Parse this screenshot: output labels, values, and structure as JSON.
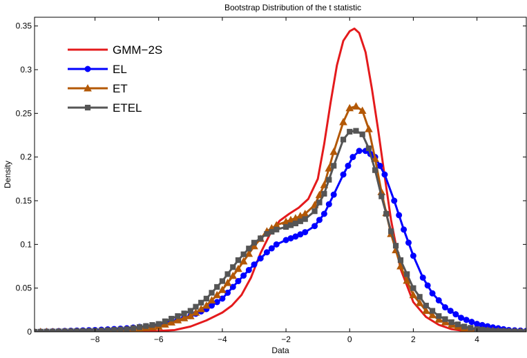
{
  "chart_data": {
    "type": "line",
    "title": "Bootstrap Distribution of the t statistic",
    "xlabel": "Data",
    "ylabel": "Density",
    "xlim": [
      -9.9,
      5.55
    ],
    "ylim": [
      0,
      0.36
    ],
    "xticks": [
      -8,
      -6,
      -4,
      -2,
      0,
      2,
      4
    ],
    "yticks": [
      0,
      0.05,
      0.1,
      0.15,
      0.2,
      0.25,
      0.3,
      0.35
    ],
    "ytick_labels": [
      "0",
      "0.05",
      "0.1",
      "0.15",
      "0.2",
      "0.25",
      "0.3",
      "0.35"
    ],
    "legend_position": "top-left",
    "series": [
      {
        "name": "GMM−2S",
        "color": "#e41a1c",
        "marker": "none",
        "x": [
          -9.9,
          -8,
          -7,
          -6,
          -5.5,
          -5,
          -4.5,
          -4,
          -3.7,
          -3.4,
          -3.1,
          -2.8,
          -2.5,
          -2.2,
          -1.9,
          -1.6,
          -1.3,
          -1,
          -0.8,
          -0.6,
          -0.4,
          -0.2,
          0,
          0.15,
          0.3,
          0.5,
          0.7,
          0.9,
          1.1,
          1.3,
          1.6,
          2,
          2.4,
          2.8,
          3.2,
          3.6,
          4,
          5.55
        ],
        "values": [
          0,
          0,
          0,
          0.001,
          0.002,
          0.006,
          0.013,
          0.022,
          0.03,
          0.042,
          0.062,
          0.09,
          0.112,
          0.127,
          0.135,
          0.142,
          0.152,
          0.175,
          0.215,
          0.262,
          0.305,
          0.333,
          0.344,
          0.347,
          0.342,
          0.32,
          0.278,
          0.23,
          0.178,
          0.128,
          0.072,
          0.034,
          0.017,
          0.008,
          0.003,
          0.001,
          0.0005,
          0
        ]
      },
      {
        "name": "EL",
        "color": "#0000ff",
        "marker": "circle",
        "x": [
          -9.9,
          -8,
          -7,
          -6,
          -5,
          -4.5,
          -4,
          -3.5,
          -3,
          -2.6,
          -2.3,
          -2,
          -1.7,
          -1.4,
          -1.1,
          -0.8,
          -0.5,
          -0.2,
          0.1,
          0.3,
          0.5,
          0.8,
          1.1,
          1.4,
          1.7,
          2,
          2.3,
          2.6,
          3,
          3.5,
          4,
          4.5,
          5,
          5.55
        ],
        "values": [
          0,
          0.002,
          0.004,
          0.008,
          0.018,
          0.026,
          0.038,
          0.058,
          0.077,
          0.091,
          0.1,
          0.105,
          0.109,
          0.114,
          0.121,
          0.135,
          0.157,
          0.18,
          0.2,
          0.207,
          0.207,
          0.2,
          0.18,
          0.15,
          0.117,
          0.087,
          0.062,
          0.044,
          0.028,
          0.016,
          0.009,
          0.005,
          0.002,
          0.001
        ]
      },
      {
        "name": "ET",
        "color": "#b35806",
        "marker": "triangle",
        "x": [
          -9.9,
          -8,
          -7,
          -6,
          -5,
          -4.5,
          -4,
          -3.5,
          -3,
          -2.6,
          -2.3,
          -2,
          -1.7,
          -1.4,
          -1.1,
          -0.8,
          -0.5,
          -0.2,
          0,
          0.2,
          0.4,
          0.6,
          0.8,
          1,
          1.3,
          1.6,
          2,
          2.4,
          2.8,
          3.2,
          3.6,
          4,
          4.5,
          5,
          5.55
        ],
        "values": [
          0,
          0,
          0.002,
          0.006,
          0.018,
          0.03,
          0.048,
          0.072,
          0.098,
          0.115,
          0.122,
          0.126,
          0.13,
          0.135,
          0.145,
          0.168,
          0.206,
          0.24,
          0.256,
          0.258,
          0.253,
          0.232,
          0.198,
          0.16,
          0.112,
          0.075,
          0.042,
          0.024,
          0.014,
          0.008,
          0.004,
          0.002,
          0.001,
          0,
          0
        ]
      },
      {
        "name": "ETEL",
        "color": "#555555",
        "marker": "square",
        "x": [
          -9.9,
          -8,
          -7,
          -6,
          -5,
          -4.5,
          -4,
          -3.5,
          -3,
          -2.6,
          -2.3,
          -2,
          -1.7,
          -1.4,
          -1.1,
          -0.8,
          -0.5,
          -0.2,
          0,
          0.2,
          0.4,
          0.6,
          0.8,
          1,
          1.3,
          1.6,
          2,
          2.4,
          2.8,
          3.2,
          3.6,
          4,
          4.5,
          5,
          5.55
        ],
        "values": [
          0,
          0.001,
          0.003,
          0.009,
          0.024,
          0.038,
          0.058,
          0.082,
          0.102,
          0.112,
          0.117,
          0.12,
          0.124,
          0.129,
          0.138,
          0.158,
          0.19,
          0.22,
          0.229,
          0.23,
          0.226,
          0.21,
          0.185,
          0.155,
          0.115,
          0.082,
          0.05,
          0.03,
          0.018,
          0.011,
          0.006,
          0.003,
          0.001,
          0.0005,
          0
        ]
      }
    ]
  }
}
